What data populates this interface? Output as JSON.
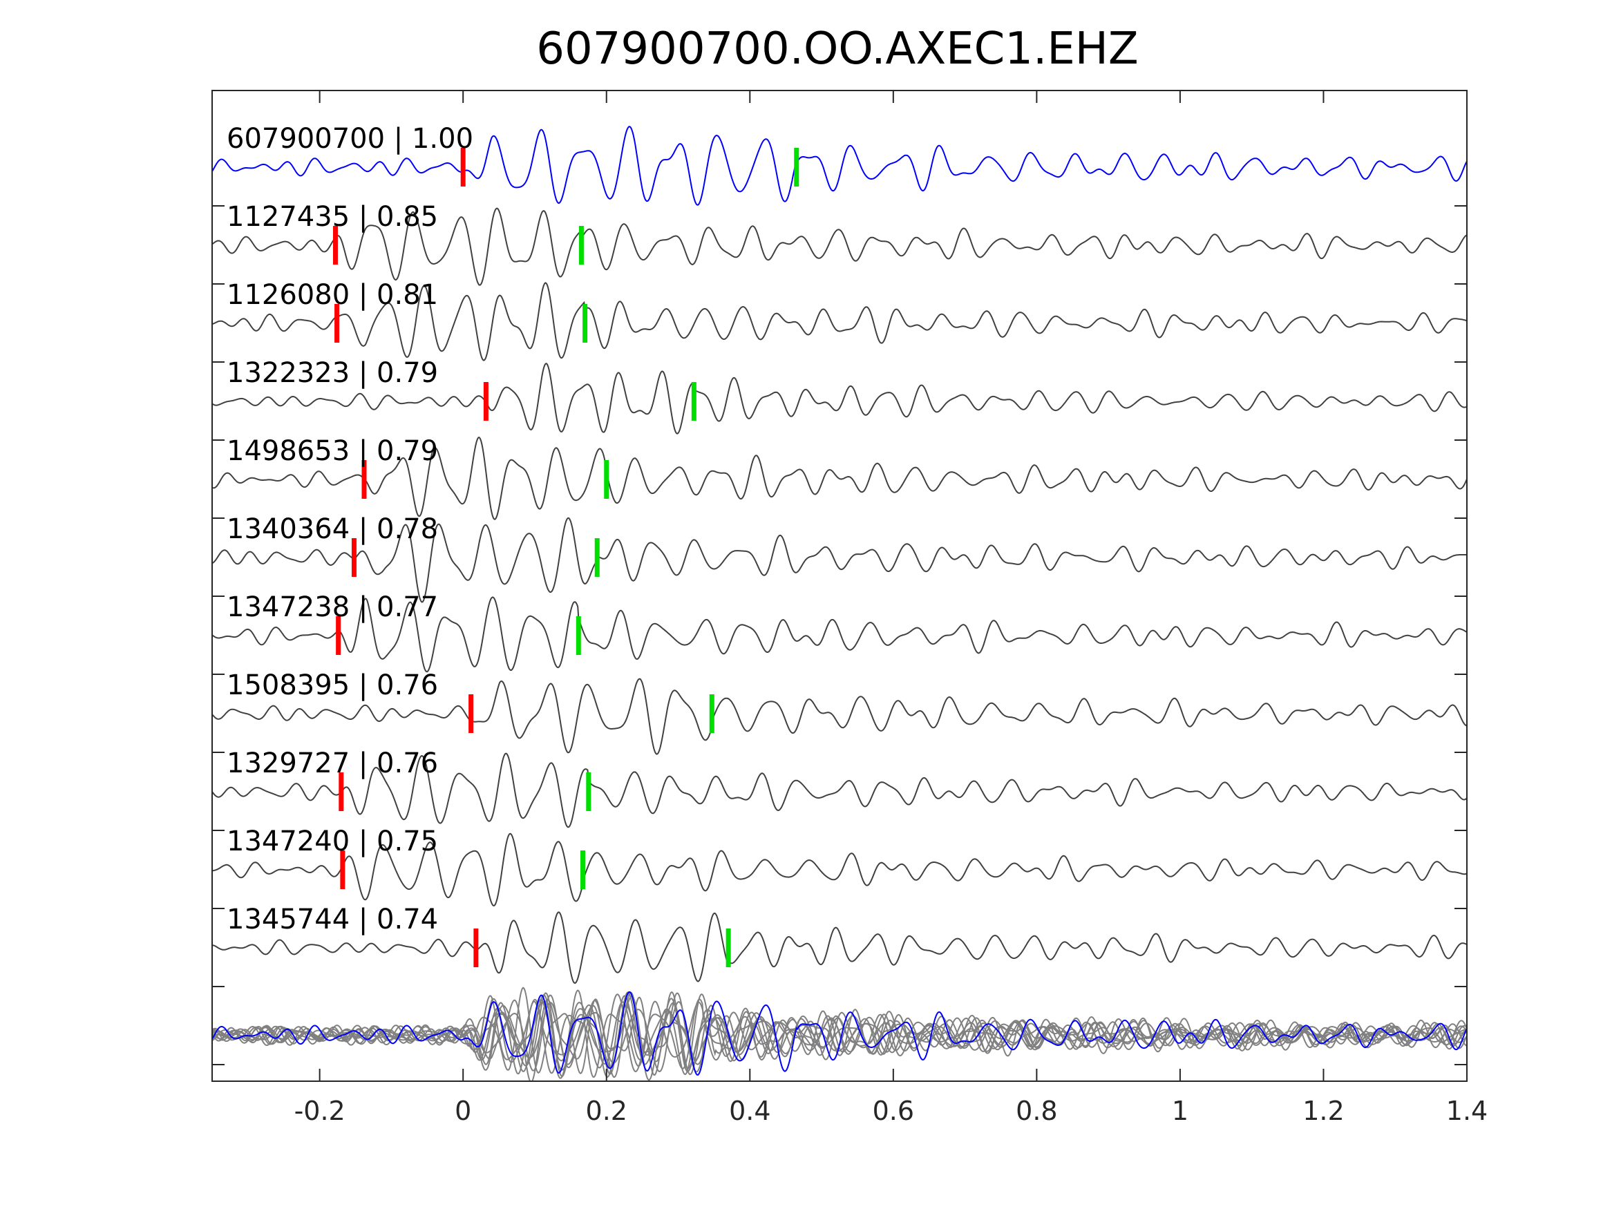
{
  "chart_data": {
    "type": "line",
    "title": "607900700.OO.AXEC1.EHZ",
    "xlabel": "",
    "ylabel": "",
    "xlim": [
      -0.35,
      1.4
    ],
    "x_ticks": [
      {
        "value": -0.2,
        "label": "-0.2"
      },
      {
        "value": 0,
        "label": "0"
      },
      {
        "value": 0.2,
        "label": "0.2"
      },
      {
        "value": 0.4,
        "label": "0.4"
      },
      {
        "value": 0.6,
        "label": "0.6"
      },
      {
        "value": 0.8,
        "label": "0.8"
      },
      {
        "value": 1.0,
        "label": "1"
      },
      {
        "value": 1.2,
        "label": "1.2"
      },
      {
        "value": 1.4,
        "label": "1.4"
      }
    ],
    "grid": false,
    "legend": "none",
    "colors": {
      "template_trace": "#0000ff",
      "match_trace": "#404040",
      "stack_trace": "#808080",
      "p_pick": "#ff0000",
      "s_pick": "#00dd00",
      "axis": "#262626"
    },
    "series": [
      {
        "label": "607900700 | 1.00",
        "p_pick": 0.0,
        "s_pick": 0.465,
        "amplitude": 1.0,
        "frequency": 16,
        "seed": 1,
        "template": true
      },
      {
        "label": "1127435 | 0.85",
        "p_pick": -0.178,
        "s_pick": 0.165,
        "amplitude": 1.0,
        "frequency": 17,
        "seed": 2
      },
      {
        "label": "1126080 | 0.81",
        "p_pick": -0.176,
        "s_pick": 0.17,
        "amplitude": 1.0,
        "frequency": 18,
        "seed": 3
      },
      {
        "label": "1322323 | 0.79",
        "p_pick": 0.032,
        "s_pick": 0.322,
        "amplitude": 0.85,
        "frequency": 19,
        "seed": 4
      },
      {
        "label": "1498653 | 0.79",
        "p_pick": -0.138,
        "s_pick": 0.2,
        "amplitude": 1.0,
        "frequency": 18,
        "seed": 5
      },
      {
        "label": "1340364 | 0.78",
        "p_pick": -0.152,
        "s_pick": 0.187,
        "amplitude": 1.0,
        "frequency": 17,
        "seed": 6
      },
      {
        "label": "1347238 | 0.77",
        "p_pick": -0.174,
        "s_pick": 0.161,
        "amplitude": 1.0,
        "frequency": 17,
        "seed": 7
      },
      {
        "label": "1508395 | 0.76",
        "p_pick": 0.011,
        "s_pick": 0.347,
        "amplitude": 0.95,
        "frequency": 16,
        "seed": 8
      },
      {
        "label": "1329727 | 0.76",
        "p_pick": -0.17,
        "s_pick": 0.175,
        "amplitude": 0.95,
        "frequency": 17,
        "seed": 9
      },
      {
        "label": "1347240 | 0.75",
        "p_pick": -0.168,
        "s_pick": 0.167,
        "amplitude": 0.9,
        "frequency": 17,
        "seed": 10
      },
      {
        "label": "1345744 | 0.74",
        "p_pick": 0.018,
        "s_pick": 0.37,
        "amplitude": 0.9,
        "frequency": 18,
        "seed": 11
      }
    ],
    "stack": {
      "template_seed": 1,
      "overlay_count": 10
    }
  }
}
